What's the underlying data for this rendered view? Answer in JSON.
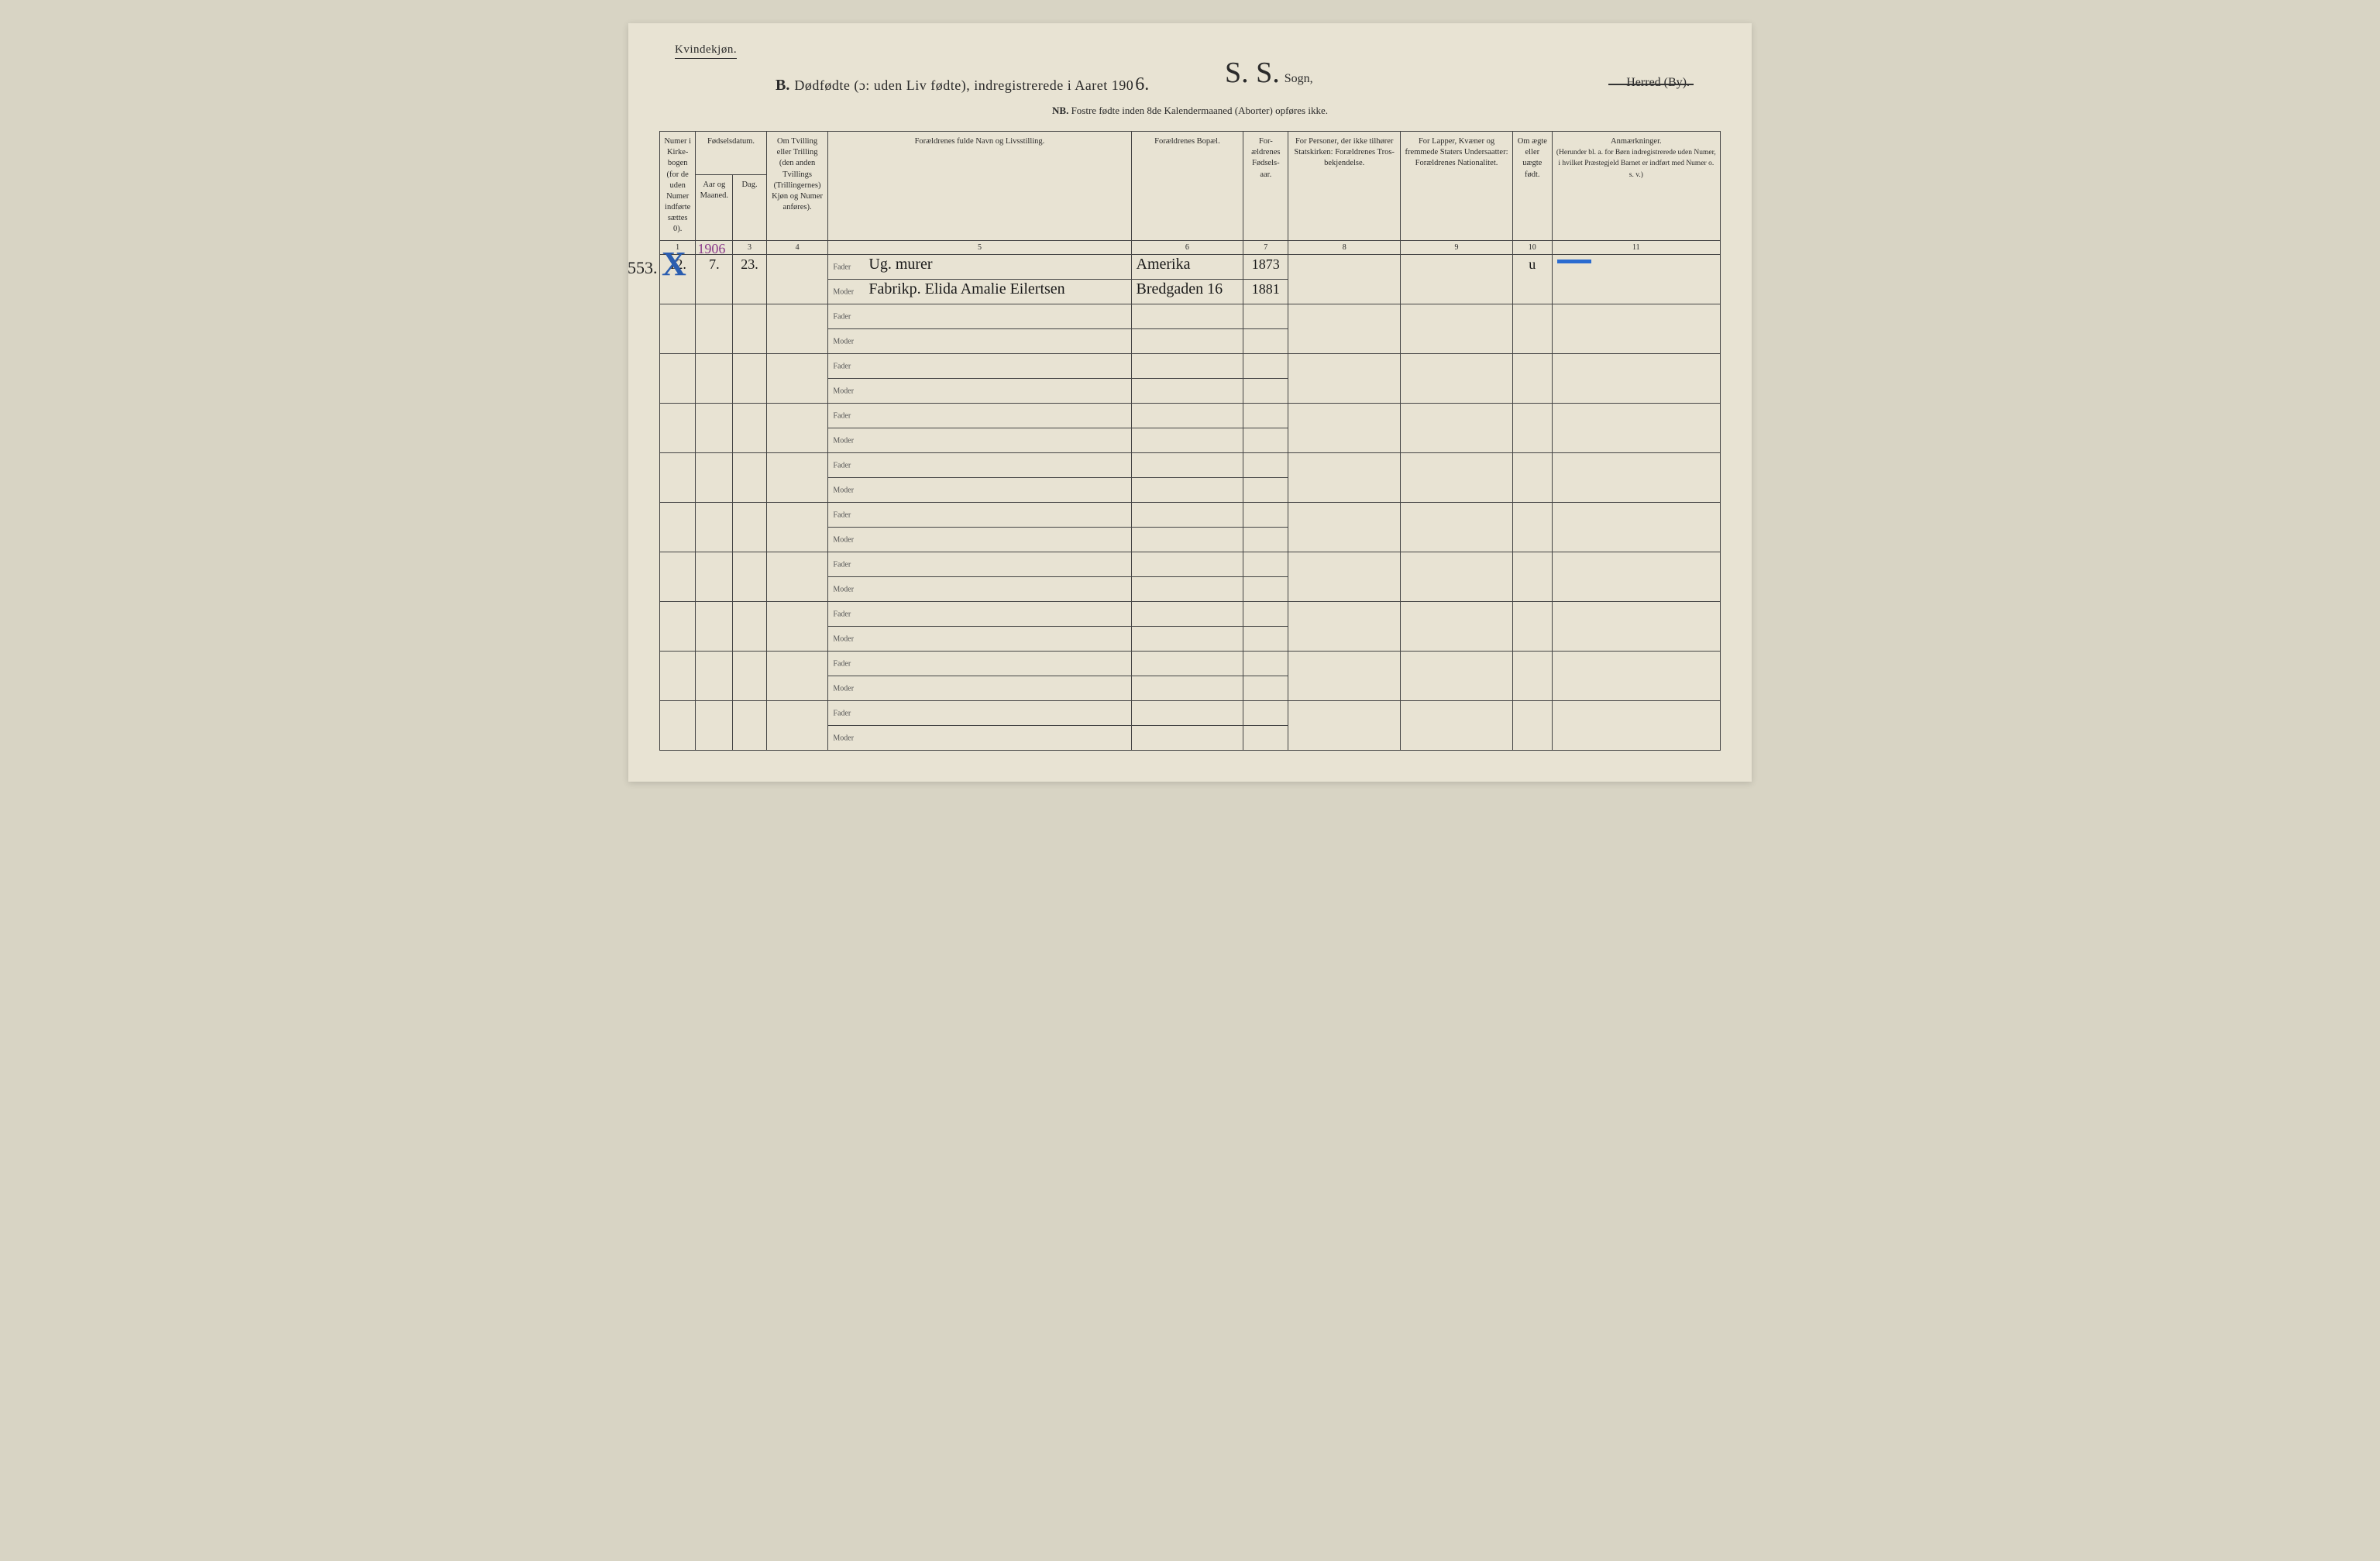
{
  "header": {
    "gender_label": "Kvindekjøn.",
    "title_prefix": "B.",
    "title_main": "Dødfødte (ɔ: uden Liv fødte), indregistrerede i Aaret 190",
    "year_digit": "6.",
    "sogn_script": "S. S.",
    "sogn_label": "Sogn,",
    "herred": "Herred (By).",
    "nb_prefix": "NB.",
    "nb_text": "Fostre fødte inden 8de Kalendermaaned (Aborter) opføres ikke."
  },
  "columns": {
    "c1": "Numer i Kirke-bogen (for de uden Numer indførte sættes 0).",
    "c2": "Fødselsdatum.",
    "c2a": "Aar og Maaned.",
    "c2b": "Dag.",
    "c4": "Om Tvilling eller Trilling (den anden Tvillings (Trillingernes) Kjøn og Numer anføres).",
    "c5": "Forældrenes fulde Navn og Livsstilling.",
    "c6": "Forældrenes Bopæl.",
    "c7": "For-ældrenes Fødsels-aar.",
    "c8": "For Personer, der ikke tilhører Statskirken: Forældrenes Tros-bekjendelse.",
    "c9": "For Lapper, Kvæner og fremmede Staters Undersaatter: Forældrenes Nationalitet.",
    "c10": "Om ægte eller uægte født.",
    "c11_title": "Anmærkninger.",
    "c11_sub": "(Herunder bl. a. for Børn indregistrerede uden Numer, i hvilket Præstegjeld Barnet er indført med Numer o. s. v.)"
  },
  "colnums": [
    "1",
    "",
    "3",
    "4",
    "5",
    "6",
    "7",
    "8",
    "9",
    "10",
    "11"
  ],
  "fm_labels": {
    "fader": "Fader",
    "moder": "Moder"
  },
  "entry": {
    "margin_number": "553.",
    "col1": "12.",
    "year_written": "1906",
    "month": "7.",
    "day": "23.",
    "fader_name": "Ug. murer",
    "moder_name": "Fabrikp. Elida Amalie Eilertsen",
    "fader_bopael": "Amerika",
    "moder_bopael": "Bredgaden 16",
    "fader_aar": "1873",
    "moder_aar": "1881",
    "aegte": "u"
  },
  "num_empty_pairs": 9,
  "colors": {
    "page_bg": "#e8e3d3",
    "ink": "#2a2a2a",
    "blue_pencil": "#2a6bd0",
    "purple_ink": "#8a3a8a"
  }
}
